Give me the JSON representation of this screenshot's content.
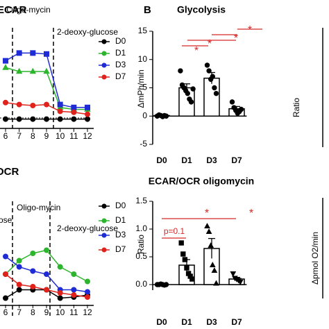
{
  "chart_data": [
    {
      "type": "line",
      "title": "ECAR",
      "annotations": [
        "Oligo-mycin",
        "2-deoxy-glucose"
      ],
      "x": [
        6,
        7,
        8,
        9,
        10,
        11,
        12
      ],
      "xlim": [
        6,
        12
      ],
      "xticks": [
        6,
        7,
        8,
        9,
        10,
        11,
        12
      ],
      "ylim": [
        0,
        100
      ],
      "series": [
        {
          "name": "D0",
          "color": "#000000",
          "marker": "circle",
          "values": [
            6,
            6,
            6,
            6,
            6,
            6,
            6
          ]
        },
        {
          "name": "D1",
          "color": "#2db52d",
          "marker": "triangle",
          "values": [
            59,
            55,
            55,
            55,
            18,
            16,
            16
          ]
        },
        {
          "name": "D3",
          "color": "#1f2bd4",
          "marker": "square",
          "values": [
            66,
            74,
            74,
            73,
            21,
            18,
            18
          ]
        },
        {
          "name": "D7",
          "color": "#e0221c",
          "marker": "circle",
          "values": [
            23,
            21,
            20,
            21,
            14,
            13,
            11
          ]
        }
      ]
    },
    {
      "type": "line",
      "title": "OCR",
      "annotations": [
        "ose",
        "Oligo-mycin",
        "2-deoxy-glucose"
      ],
      "x": [
        6,
        7,
        8,
        9,
        10,
        11,
        12
      ],
      "xlim": [
        6,
        12
      ],
      "xticks": [
        6,
        7,
        8,
        9,
        10,
        11,
        12
      ],
      "ylim": [
        0,
        100
      ],
      "series": [
        {
          "name": "D0",
          "color": "#000000",
          "marker": "circle",
          "values": [
            7,
            15,
            15,
            15,
            7,
            8,
            10
          ]
        },
        {
          "name": "D1",
          "color": "#2db52d",
          "marker": "circle",
          "values": [
            30,
            43,
            50,
            53,
            37,
            30,
            23
          ]
        },
        {
          "name": "D3",
          "color": "#1f2bd4",
          "marker": "circle",
          "values": [
            47,
            37,
            33,
            30,
            15,
            15,
            13
          ]
        },
        {
          "name": "D7",
          "color": "#e0221c",
          "marker": "circle",
          "values": [
            30,
            20,
            18,
            15,
            12,
            10,
            8
          ]
        }
      ]
    },
    {
      "type": "bar",
      "panel": "B",
      "title": "Glycolysis",
      "y_label": "ΔmPh/min",
      "categories": [
        "D0",
        "D1",
        "D3",
        "D7"
      ],
      "values": [
        0.1,
        5,
        6.7,
        1.3
      ],
      "errors": [
        0.1,
        0.7,
        1,
        0.4
      ],
      "points": [
        [
          0,
          0.2,
          0.1,
          -0.1,
          0.1,
          0
        ],
        [
          8,
          5.5,
          5,
          4.5,
          4,
          3,
          2.5,
          4.8
        ],
        [
          9,
          8,
          6.5,
          7,
          5,
          4
        ],
        [
          2.5,
          1.5,
          1,
          0.5,
          0.8,
          1.2
        ]
      ],
      "markers": [
        "circle",
        "circle",
        "circle",
        "circle"
      ],
      "ylim": [
        -5,
        15
      ],
      "yticks": [
        15,
        10,
        5,
        0,
        -5
      ],
      "annotations": [
        "*",
        "*",
        "*",
        "*"
      ]
    },
    {
      "type": "bar",
      "title": "ECAR/OCR oligomycin",
      "y_label": "Ratio",
      "categories": [
        "D0",
        "D1",
        "D3",
        "D7"
      ],
      "values": [
        0,
        0.35,
        0.65,
        0.1
      ],
      "errors": [
        0.01,
        0.1,
        0.18,
        0.03
      ],
      "points": [
        [
          0,
          0,
          0.01,
          0,
          -0.01,
          0
        ],
        [
          0.75,
          0.55,
          0.45,
          0.3,
          0.2,
          0.15,
          0.1
        ],
        [
          1.05,
          0.95,
          0.7,
          0.35,
          0.25,
          0.02
        ],
        [
          0.2,
          0.12,
          0.1,
          0.08,
          0.05
        ]
      ],
      "markers": [
        "circle",
        "square",
        "triangle",
        "triangle-down"
      ],
      "ylim": [
        -0.1,
        1.5
      ],
      "yticks": [
        1.5,
        {
          "value": 1,
          "label": "1.0"
        },
        0.5,
        {
          "value": 0,
          "label": "0.0"
        }
      ],
      "annotations": [
        "p=0.1",
        "*",
        "*"
      ]
    },
    {
      "type": "cropped",
      "y_label": "Ratio"
    },
    {
      "type": "cropped",
      "y_label": "Δpmol O2/min"
    }
  ]
}
